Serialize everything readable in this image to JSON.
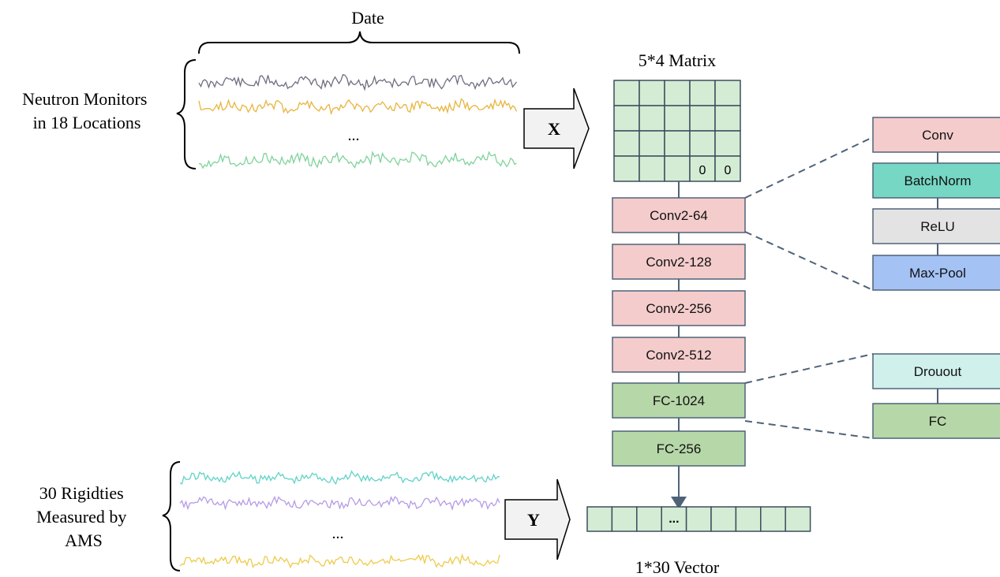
{
  "input": {
    "date_label": "Date",
    "side_label_lines": [
      "Neutron Monitors",
      "in 18 Locations"
    ],
    "ellipsis": "...",
    "series_colors": [
      "#6e6e80",
      "#e8b43c",
      "#7fd39a"
    ],
    "arrow_label": "X"
  },
  "matrix": {
    "title": "5*4 Matrix",
    "rows": 4,
    "cols": 5,
    "cells": [
      [
        "",
        "",
        "",
        "",
        ""
      ],
      [
        "",
        "",
        "",
        "",
        ""
      ],
      [
        "",
        "",
        "",
        "",
        ""
      ],
      [
        "",
        "",
        "",
        "0",
        "0"
      ]
    ],
    "fill": "#d4ecd4"
  },
  "network": {
    "layers": [
      {
        "label": "Conv2-64",
        "kind": "conv"
      },
      {
        "label": "Conv2-128",
        "kind": "conv"
      },
      {
        "label": "Conv2-256",
        "kind": "conv"
      },
      {
        "label": "Conv2-512",
        "kind": "conv"
      },
      {
        "label": "FC-1024",
        "kind": "fc"
      },
      {
        "label": "FC-256",
        "kind": "fc"
      }
    ],
    "colors": {
      "conv": "#f4cccc",
      "fc": "#b6d7a8",
      "stroke": "#4f6378"
    }
  },
  "conv_detail": [
    {
      "label": "Conv",
      "fill": "#f4cccc"
    },
    {
      "label": "BatchNorm",
      "fill": "#76d7c4"
    },
    {
      "label": "ReLU",
      "fill": "#e3e3e3"
    },
    {
      "label": "Max-Pool",
      "fill": "#a4c2f4"
    }
  ],
  "fc_detail": [
    {
      "label": "Drouout",
      "fill": "#d0f0ec"
    },
    {
      "label": "FC",
      "fill": "#b6d7a8"
    }
  ],
  "output": {
    "side_label_lines": [
      "30 Rigidties",
      "Measured by",
      "AMS"
    ],
    "ellipsis": "...",
    "series_colors": [
      "#5fd3c8",
      "#b69ae6",
      "#eecb4a"
    ],
    "arrow_label": "Y",
    "vector_cells": [
      "",
      "",
      "",
      "...",
      "",
      "",
      "",
      "",
      ""
    ],
    "vector_title": "1*30 Vector",
    "fill": "#d4ecd4"
  }
}
